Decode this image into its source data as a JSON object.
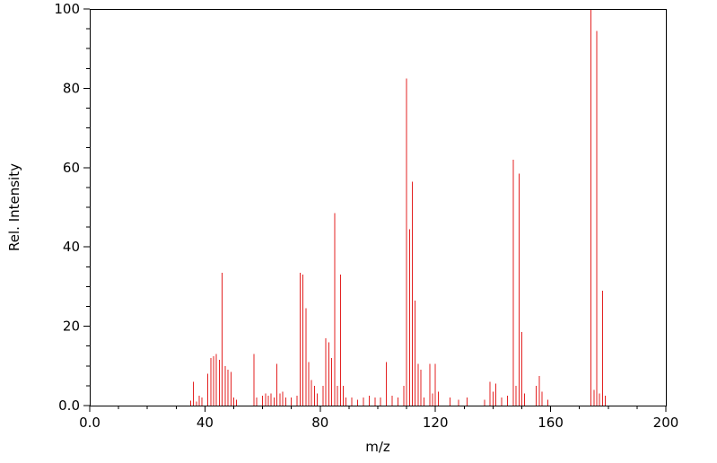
{
  "chart_data": {
    "type": "bar",
    "subtype": "mass-spectrum-stick-plot",
    "title": "",
    "xlabel": "m/z",
    "ylabel": "Rel. Intensity",
    "xlim": [
      0,
      200
    ],
    "ylim": [
      0,
      100
    ],
    "x_major_ticks": [
      0,
      40,
      80,
      120,
      160,
      200
    ],
    "x_major_labels": [
      "0.0",
      "40",
      "80",
      "120",
      "160",
      "200"
    ],
    "x_minor_step": 10,
    "y_major_ticks": [
      0,
      20,
      40,
      60,
      80,
      100
    ],
    "y_major_labels": [
      "0.0",
      "20",
      "40",
      "60",
      "80",
      "100"
    ],
    "y_minor_step": 5,
    "grid": "off",
    "legend": "none",
    "peak_color": "#e32222",
    "axis_color": "#000000",
    "peaks": [
      [
        35,
        1.2
      ],
      [
        36,
        6
      ],
      [
        37,
        1
      ],
      [
        38,
        2.5
      ],
      [
        39,
        2
      ],
      [
        41,
        8
      ],
      [
        42,
        12
      ],
      [
        43,
        12.5
      ],
      [
        44,
        13
      ],
      [
        45,
        11.5
      ],
      [
        46,
        33.5
      ],
      [
        47,
        10
      ],
      [
        48,
        9
      ],
      [
        49,
        8.5
      ],
      [
        50,
        2
      ],
      [
        51,
        1.5
      ],
      [
        57,
        13
      ],
      [
        58,
        2
      ],
      [
        60,
        2.5
      ],
      [
        61,
        3
      ],
      [
        62,
        2.5
      ],
      [
        63,
        3
      ],
      [
        64,
        2
      ],
      [
        65,
        10.5
      ],
      [
        66,
        3
      ],
      [
        67,
        3.5
      ],
      [
        68,
        2
      ],
      [
        70,
        2
      ],
      [
        72,
        2.5
      ],
      [
        73,
        33.5
      ],
      [
        74,
        33
      ],
      [
        75,
        24.5
      ],
      [
        76,
        11
      ],
      [
        77,
        6.5
      ],
      [
        78,
        5
      ],
      [
        79,
        3
      ],
      [
        81,
        5
      ],
      [
        82,
        17
      ],
      [
        83,
        16
      ],
      [
        84,
        12
      ],
      [
        85,
        48.5
      ],
      [
        86,
        5
      ],
      [
        87,
        33
      ],
      [
        88,
        5
      ],
      [
        89,
        2
      ],
      [
        91,
        2
      ],
      [
        93,
        1.5
      ],
      [
        95,
        2
      ],
      [
        97,
        2.5
      ],
      [
        99,
        2
      ],
      [
        101,
        2
      ],
      [
        103,
        11
      ],
      [
        105,
        2.5
      ],
      [
        107,
        2
      ],
      [
        109,
        5
      ],
      [
        110,
        82.5
      ],
      [
        111,
        44.5
      ],
      [
        112,
        56.5
      ],
      [
        113,
        26.5
      ],
      [
        114,
        10.5
      ],
      [
        115,
        9
      ],
      [
        116,
        2
      ],
      [
        118,
        10.5
      ],
      [
        119,
        3
      ],
      [
        120,
        10.5
      ],
      [
        121,
        3.5
      ],
      [
        125,
        2
      ],
      [
        128,
        1.5
      ],
      [
        131,
        2
      ],
      [
        137,
        1.5
      ],
      [
        139,
        6
      ],
      [
        140,
        3.5
      ],
      [
        141,
        5.5
      ],
      [
        143,
        2
      ],
      [
        145,
        2.5
      ],
      [
        147,
        62
      ],
      [
        148,
        5
      ],
      [
        149,
        58.5
      ],
      [
        150,
        18.5
      ],
      [
        151,
        3
      ],
      [
        155,
        5
      ],
      [
        156,
        7.5
      ],
      [
        157,
        3.5
      ],
      [
        159,
        1.5
      ],
      [
        174,
        100
      ],
      [
        175,
        4
      ],
      [
        176,
        94.5
      ],
      [
        177,
        3
      ],
      [
        178,
        29
      ],
      [
        179,
        2.5
      ]
    ]
  }
}
